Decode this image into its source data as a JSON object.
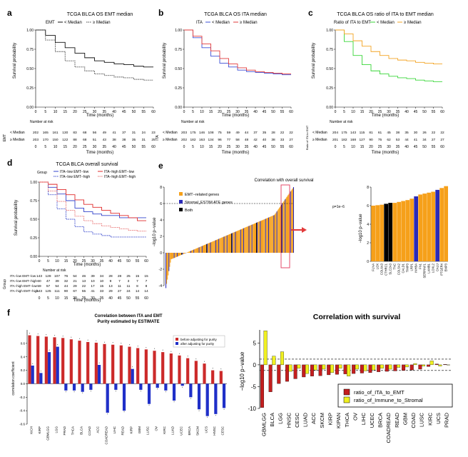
{
  "colors": {
    "emt_low": "#111111",
    "emt_high": "#444444",
    "ita_low": "#3b4fd6",
    "ita_high": "#e23b3b",
    "ratio_low": "#37d637",
    "ratio_high": "#f3a423",
    "d_lowlow": "#3344cc",
    "d_lowhigh": "#3344cc",
    "d_highlow": "#e02a2a",
    "d_highhigh": "#e86a6a",
    "emt_genes": "#f6a01a",
    "stromal": "#2a2ab8",
    "both": "#000000",
    "before": "#cc2a2a",
    "after": "#1f2fc8",
    "surv_ita": "#c41e1e",
    "surv_imm": "#f0f020"
  },
  "panel_a": {
    "letter": "a",
    "title": "TCGA BLCA OS EMT median",
    "legend_group": "EMT",
    "legend_items": [
      "< Median",
      "≥ Median"
    ],
    "ylabel": "Survival probability",
    "xlabel": "Time (months)",
    "risk_title": "Number at risk",
    "risk_group": "EMT",
    "risk_labels": [
      "< Median",
      "≥ Median"
    ]
  },
  "panel_b": {
    "letter": "b",
    "title": "TCGA BLCA OS ITA median",
    "legend_group": "ITA",
    "legend_items": [
      "< Median",
      "≥ Median"
    ],
    "ylabel": "Survival probability",
    "xlabel": "Time (months)",
    "risk_title": "Number at risk",
    "risk_group": "ITA",
    "risk_labels": [
      "< Median",
      "≥ Median"
    ]
  },
  "panel_c": {
    "letter": "c",
    "title": "TCGA BLCA OS ratio of ITA to EMT median",
    "legend_group": "Ratio of ITA to EMT",
    "legend_items": [
      "< Median",
      "≥ Median"
    ],
    "ylabel": "Survival probability",
    "xlabel": "Time (months)",
    "risk_title": "Number at risk",
    "risk_group": "Ratio of ITA to EMT",
    "risk_labels": [
      "< Median",
      "≥ Median"
    ]
  },
  "panel_d": {
    "letter": "d",
    "title": "TCGA BLCA overall survival",
    "legend_group": "Group",
    "legend_items": [
      "ITA−low EMT−low",
      "ITA−high EMT−low",
      "ITA−low EMT−high",
      "ITA−high EMT−high"
    ],
    "ylabel": "Survival probability",
    "xlabel": "Time (months)",
    "risk_title": "Number at risk",
    "risk_group": "Group",
    "risk_labels": [
      "ITA−low EMT−low",
      "ITA−low EMT−high",
      "ITA−high EMT−low",
      "ITA−high EMT−high"
    ]
  },
  "panel_e": {
    "letter": "e",
    "title": "Correlation with overall survival",
    "ylabel": "−log10 p−value",
    "zoom_ylabel": "−log10 p−value",
    "legend": [
      "EMT−related genes",
      "Stromal_ESTIM ATE genes",
      "Both"
    ],
    "threshold_label": "p=1e−6"
  },
  "panel_f": {
    "letter": "f",
    "title_line1": "Correlation between ITA and EMT",
    "title_line2": "Purity estimated by ESTIMATE",
    "ylabel": "correlation coefficient",
    "legend": [
      "before adjusting for purity",
      "after adjusting for purity"
    ]
  },
  "panel_g": {
    "title": "Correlation with survival",
    "ylabel": "−log10 p−value",
    "legend": [
      "ratio_of_ITA_to_EMT",
      "ratio_of_Immune_to_Stromal"
    ]
  },
  "chart_data": [
    {
      "id": "a",
      "type": "line",
      "title": "TCGA BLCA OS EMT median",
      "xlabel": "Time (months)",
      "ylabel": "Survival probability",
      "xlim": [
        0,
        60
      ],
      "ylim": [
        0,
        1
      ],
      "xticks": [
        0,
        5,
        10,
        15,
        20,
        25,
        30,
        35,
        40,
        45,
        50,
        55,
        60
      ],
      "yticks": [
        "0.00",
        "0.25",
        "0.50",
        "0.75",
        "1.00"
      ],
      "x": [
        0,
        5,
        10,
        15,
        20,
        25,
        30,
        35,
        40,
        45,
        50,
        55,
        60
      ],
      "series": [
        {
          "name": "< Median",
          "values": [
            1.0,
            0.93,
            0.84,
            0.77,
            0.7,
            0.64,
            0.6,
            0.58,
            0.56,
            0.55,
            0.53,
            0.52,
            0.52
          ]
        },
        {
          "name": "≥ Median",
          "values": [
            1.0,
            0.87,
            0.72,
            0.6,
            0.52,
            0.47,
            0.43,
            0.41,
            0.39,
            0.38,
            0.36,
            0.35,
            0.35
          ]
        }
      ],
      "risk_table": {
        "< Median": [
          202,
          165,
          161,
          130,
          83,
          68,
          56,
          49,
          41,
          37,
          31,
          24,
          23
        ],
        "≥ Median": [
          203,
          170,
          150,
          122,
          88,
          68,
          51,
          43,
          38,
          38,
          35,
          31,
          25
        ]
      }
    },
    {
      "id": "b",
      "type": "line",
      "title": "TCGA BLCA OS ITA median",
      "xlabel": "Time (months)",
      "ylabel": "Survival probability",
      "xlim": [
        0,
        60
      ],
      "ylim": [
        0,
        1
      ],
      "xticks": [
        0,
        5,
        10,
        15,
        20,
        25,
        30,
        35,
        40,
        45,
        50,
        55,
        60
      ],
      "yticks": [
        "0.00",
        "0.25",
        "0.50",
        "0.75",
        "1.00"
      ],
      "x": [
        0,
        5,
        10,
        15,
        20,
        25,
        30,
        35,
        40,
        45,
        50,
        55,
        60
      ],
      "series": [
        {
          "name": "< Median",
          "values": [
            1.0,
            0.9,
            0.77,
            0.66,
            0.57,
            0.52,
            0.48,
            0.46,
            0.45,
            0.44,
            0.43,
            0.42,
            0.42
          ]
        },
        {
          "name": "≥ Median",
          "values": [
            1.0,
            0.92,
            0.82,
            0.73,
            0.63,
            0.56,
            0.51,
            0.48,
            0.46,
            0.45,
            0.44,
            0.43,
            0.43
          ]
        }
      ],
      "risk_table": {
        "< Median": [
          203,
          175,
          146,
          108,
          75,
          59,
          49,
          44,
          37,
          35,
          28,
          22,
          22
        ],
        "≥ Median": [
          202,
          182,
          163,
          134,
          96,
          77,
          58,
          48,
          42,
          40,
          38,
          33,
          27
        ]
      }
    },
    {
      "id": "c",
      "type": "line",
      "title": "TCGA BLCA OS ratio of ITA to EMT median",
      "xlabel": "Time (months)",
      "ylabel": "Survival probability",
      "xlim": [
        0,
        60
      ],
      "ylim": [
        0,
        1
      ],
      "xticks": [
        0,
        5,
        10,
        15,
        20,
        25,
        30,
        35,
        40,
        45,
        50,
        55,
        60
      ],
      "yticks": [
        "0.00",
        "0.25",
        "0.50",
        "0.75",
        "1.00"
      ],
      "x": [
        0,
        5,
        10,
        15,
        20,
        25,
        30,
        35,
        40,
        45,
        50,
        55,
        60
      ],
      "series": [
        {
          "name": "< Median",
          "values": [
            1.0,
            0.85,
            0.67,
            0.55,
            0.47,
            0.43,
            0.4,
            0.38,
            0.37,
            0.35,
            0.34,
            0.33,
            0.33
          ]
        },
        {
          "name": "≥ Median",
          "values": [
            1.0,
            0.95,
            0.86,
            0.79,
            0.72,
            0.67,
            0.63,
            0.61,
            0.6,
            0.58,
            0.57,
            0.56,
            0.56
          ]
        }
      ],
      "risk_table": {
        "< Median": [
          204,
          175,
          143,
          115,
          81,
          61,
          45,
          38,
          35,
          30,
          26,
          22,
          22
        ],
        "≥ Median": [
          201,
          182,
          168,
          127,
          90,
          75,
          62,
          53,
          44,
          41,
          34,
          27,
          27
        ]
      }
    },
    {
      "id": "d",
      "type": "line",
      "title": "TCGA BLCA overall survival",
      "xlabel": "Time (months)",
      "ylabel": "Survival probability",
      "xlim": [
        0,
        60
      ],
      "ylim": [
        0,
        1
      ],
      "xticks": [
        0,
        5,
        10,
        15,
        20,
        25,
        30,
        35,
        40,
        45,
        50,
        55,
        60
      ],
      "yticks": [
        "0.00",
        "0.25",
        "0.50",
        "0.75",
        "1.00"
      ],
      "x": [
        0,
        5,
        10,
        15,
        20,
        25,
        30,
        35,
        40,
        45,
        50,
        55,
        60
      ],
      "series": [
        {
          "name": "ITA−low EMT−low",
          "values": [
            1.0,
            0.93,
            0.84,
            0.75,
            0.65,
            0.6,
            0.57,
            0.55,
            0.55,
            0.52,
            0.52,
            0.52,
            0.52
          ]
        },
        {
          "name": "ITA−high EMT−low",
          "values": [
            1.0,
            0.97,
            0.9,
            0.83,
            0.76,
            0.7,
            0.66,
            0.62,
            0.58,
            0.55,
            0.52,
            0.48,
            0.48
          ]
        },
        {
          "name": "ITA−low EMT−high",
          "values": [
            1.0,
            0.83,
            0.64,
            0.5,
            0.4,
            0.33,
            0.3,
            0.28,
            0.26,
            0.26,
            0.26,
            0.26,
            0.26
          ]
        },
        {
          "name": "ITA−high EMT−high",
          "values": [
            1.0,
            0.88,
            0.74,
            0.62,
            0.54,
            0.48,
            0.44,
            0.41,
            0.39,
            0.37,
            0.35,
            0.34,
            0.34
          ]
        }
      ],
      "risk_table": {
        "ITA−low EMT−low": [
          143,
          128,
          107,
          76,
          54,
          46,
          39,
          34,
          28,
          28,
          25,
          15,
          15
        ],
        "ITA−low EMT−high": [
          60,
          47,
          39,
          32,
          21,
          13,
          10,
          10,
          9,
          7,
          3,
          7,
          7
        ],
        "ITA−high EMT−low": [
          59,
          57,
          54,
          44,
          29,
          22,
          17,
          15,
          13,
          11,
          11,
          8,
          8
        ],
        "ITA−high EMT−high": [
          143,
          125,
          111,
          90,
          67,
          55,
          41,
          33,
          29,
          27,
          24,
          14,
          14
        ]
      }
    },
    {
      "id": "e",
      "type": "bar",
      "title": "Correlation with overall survival",
      "ylabel": "−log10 p−value",
      "ylim": [
        -4,
        8
      ],
      "yticks": [
        -4,
        -2,
        0,
        2,
        4,
        6,
        8
      ],
      "threshold": 6,
      "threshold_label": "p=1e−6",
      "zoom": {
        "ylim": [
          0,
          8
        ],
        "yticks": [
          0,
          2,
          4,
          6,
          8
        ],
        "categories": [
          "FLNA",
          "LOX",
          "COL6A3",
          "CTHRC1",
          "SLC2A3",
          "TNC",
          "COL5A2",
          "CALD1",
          "TIMP3",
          "LRP1",
          "INHBA",
          "FN1",
          "SERPINF1",
          "LAMB1",
          "LOXL2",
          "CALU",
          "PTGER4",
          "EMP3"
        ],
        "values": [
          6.0,
          6.05,
          6.1,
          6.2,
          6.3,
          6.3,
          6.4,
          6.5,
          6.6,
          6.75,
          7.0,
          7.2,
          7.3,
          7.4,
          7.5,
          7.7,
          7.9,
          8.1
        ],
        "groups": [
          "emt",
          "emt",
          "emt",
          "both",
          "both",
          "emt",
          "emt",
          "emt",
          "emt",
          "emt",
          "stromal",
          "emt",
          "emt",
          "emt",
          "emt",
          "stromal",
          "emt",
          "emt"
        ]
      }
    },
    {
      "id": "f",
      "type": "bar",
      "title": "Correlation between ITA and EMT Purity estimated by ESTIMATE",
      "ylabel": "correlation coefficient",
      "ylim": [
        -0.6,
        0.8
      ],
      "yticks": [
        "0.6",
        "0.4",
        "0.2",
        "0.0",
        "-0.2",
        "-0.4",
        "-0.6"
      ],
      "categories": [
        "KICH",
        "KIRP",
        "GBMLGG",
        "LGG",
        "PRAD",
        "THCA",
        "BLCA",
        "COAD",
        "ACC",
        "COADREAD",
        "LIHC",
        "READ",
        "KIRP",
        "GBM",
        "LUSC",
        "OV",
        "KIRC",
        "LUAD",
        "UCEC",
        "BRCA",
        "SKCM",
        "UCS",
        "HNSC",
        "CESC"
      ],
      "series": [
        {
          "name": "before adjusting for purity",
          "values": [
            0.72,
            0.71,
            0.7,
            0.69,
            0.68,
            0.66,
            0.64,
            0.62,
            0.61,
            0.59,
            0.58,
            0.57,
            0.55,
            0.53,
            0.51,
            0.49,
            0.47,
            0.45,
            0.42,
            0.38,
            0.34,
            0.3,
            0.2,
            0.19
          ]
        },
        {
          "name": "after adjusting for purity",
          "values": [
            0.27,
            0.16,
            0.47,
            0.55,
            -0.1,
            -0.1,
            -0.12,
            -0.09,
            0.28,
            -0.43,
            -0.09,
            -0.4,
            0.22,
            -0.09,
            -0.3,
            -0.06,
            -0.1,
            -0.25,
            -0.03,
            -0.2,
            -0.38,
            -0.48,
            -0.45,
            -0.36
          ]
        }
      ]
    },
    {
      "id": "g",
      "type": "bar",
      "title": "Correlation with survival",
      "ylabel": "−log10 p−value",
      "ylim": [
        -10,
        8
      ],
      "yticks": [
        5,
        0,
        -5,
        -10
      ],
      "thresholds": [
        1.3,
        -1.3
      ],
      "categories": [
        "GBMLGG",
        "BLCA",
        "LGG",
        "HNSC",
        "CESC",
        "LUAD",
        "ACC",
        "SKCM",
        "KIRP",
        "KIPAN",
        "THCA",
        "OV",
        "LIHC",
        "UCEC",
        "BRCA",
        "COADREAD",
        "READ",
        "GBM",
        "COAD",
        "LUSC",
        "KIRC",
        "UCS",
        "PRAD"
      ],
      "series": [
        {
          "name": "ratio_of_ITA_to_EMT",
          "values": [
            -9.8,
            -6.2,
            -4.3,
            -3.8,
            -3.2,
            -2.8,
            -2.6,
            -2.5,
            -2.3,
            -2.2,
            -2.1,
            -2.0,
            -1.9,
            -1.8,
            -1.6,
            -1.5,
            -1.4,
            -1.3,
            -1.2,
            -1.0,
            -0.4,
            0.2,
            0.1
          ]
        },
        {
          "name": "ratio_of_Immune_to_Stromal",
          "values": [
            7.8,
            2.0,
            3.0,
            -1.5,
            -0.8,
            -2.0,
            -1.2,
            -1.0,
            -1.8,
            -0.8,
            -2.6,
            -1.0,
            -1.4,
            -1.2,
            -0.8,
            -1.0,
            -0.6,
            -0.5,
            0.3,
            -0.3,
            0.9,
            -0.3,
            0.0
          ]
        }
      ]
    }
  ]
}
